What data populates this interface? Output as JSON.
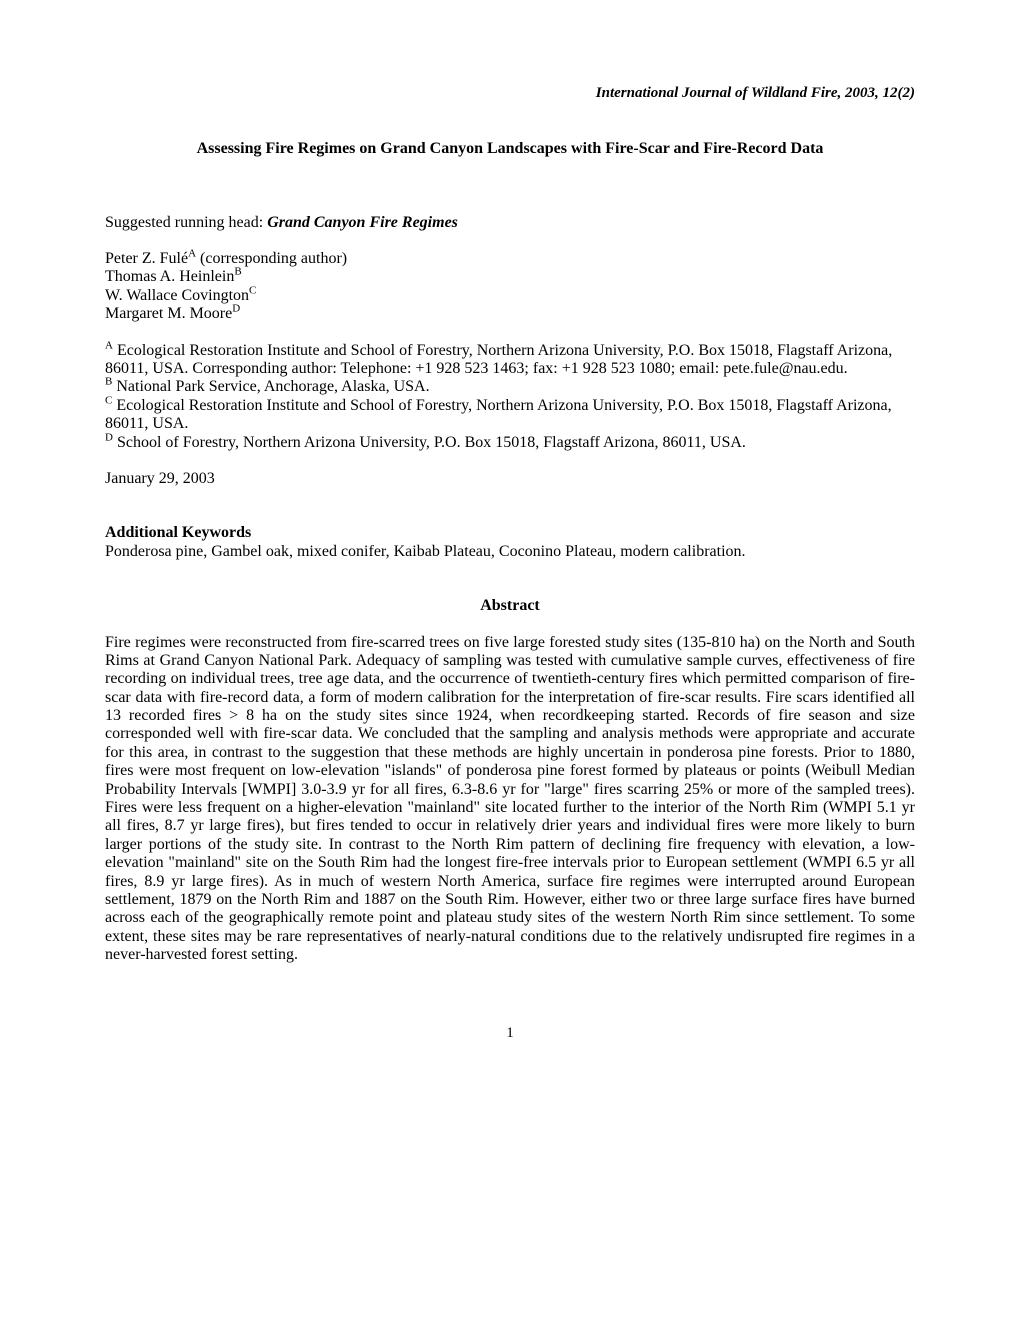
{
  "journal_header": "International Journal of Wildland Fire, 2003, 12(2)",
  "title": "Assessing Fire Regimes on Grand Canyon Landscapes with Fire-Scar and Fire-Record Data",
  "running_head": {
    "label": "Suggested running head:  ",
    "value": "Grand Canyon Fire Regimes"
  },
  "authors": [
    {
      "name": "Peter Z. Fulé",
      "sup": "A",
      "note": " (corresponding author)"
    },
    {
      "name": "Thomas A. Heinlein",
      "sup": "B",
      "note": ""
    },
    {
      "name": "W. Wallace Covington",
      "sup": "C",
      "note": ""
    },
    {
      "name": "Margaret M. Moore",
      "sup": "D",
      "note": ""
    }
  ],
  "affiliations": [
    {
      "sup": "A",
      "text": " Ecological Restoration Institute and School of Forestry, Northern Arizona University, P.O. Box 15018, Flagstaff  Arizona, 86011, USA.  Corresponding author: Telephone: +1 928 523 1463; fax: +1 928 523 1080; email: pete.fule@nau.edu."
    },
    {
      "sup": "B",
      "text": " National Park Service, Anchorage, Alaska, USA."
    },
    {
      "sup": "C",
      "text": " Ecological Restoration Institute and School of Forestry, Northern Arizona University, P.O. Box 15018, Flagstaff  Arizona, 86011, USA."
    },
    {
      "sup": "D",
      "text": " School of Forestry, Northern Arizona University, P.O. Box 15018, Flagstaff  Arizona, 86011, USA."
    }
  ],
  "date": "January 29, 2003",
  "keywords": {
    "heading": "Additional Keywords",
    "text": "Ponderosa pine, Gambel oak, mixed conifer, Kaibab Plateau, Coconino Plateau, modern calibration."
  },
  "abstract": {
    "heading": "Abstract",
    "text": "Fire regimes were reconstructed from fire-scarred trees on five large forested study sites (135-810 ha) on the North and South Rims at Grand Canyon National Park.  Adequacy of sampling was tested with cumulative sample curves, effectiveness of fire recording on individual trees, tree age data, and the occurrence of twentieth-century fires which permitted comparison of fire-scar data with fire-record data, a form of modern calibration for the interpretation of fire-scar results.  Fire scars identified all 13 recorded fires > 8 ha on the study sites since 1924, when recordkeeping started.  Records of fire season and size corresponded well with fire-scar data.  We concluded that the sampling and analysis methods were appropriate and accurate for this area, in contrast to the suggestion that these methods are highly uncertain in ponderosa pine forests.  Prior to 1880, fires were most frequent on low-elevation \"islands\" of ponderosa pine forest formed by plateaus or points (Weibull Median Probability Intervals [WMPI] 3.0-3.9 yr for all fires, 6.3-8.6 yr for \"large\" fires scarring 25% or more of the sampled trees).  Fires were less frequent on a higher-elevation \"mainland\" site located further to the interior of the North Rim (WMPI 5.1 yr all fires, 8.7 yr large fires), but fires tended to occur in relatively drier years and individual fires were more likely to burn larger portions of the study site.  In contrast to the North Rim pattern of declining fire frequency with elevation, a low-elevation \"mainland\" site on the South Rim had the longest fire-free intervals prior to European settlement (WMPI 6.5 yr all fires, 8.9 yr large fires).  As in much of western North America, surface fire regimes were interrupted around European settlement, 1879 on the North Rim and 1887 on the South Rim.  However, either two or three large surface fires have burned across each of the geographically remote point and plateau study sites of the western North Rim since settlement.  To some extent, these sites may be rare representatives of nearly-natural conditions due to the relatively undisrupted fire regimes in a never-harvested forest setting."
  },
  "page_number": "1"
}
